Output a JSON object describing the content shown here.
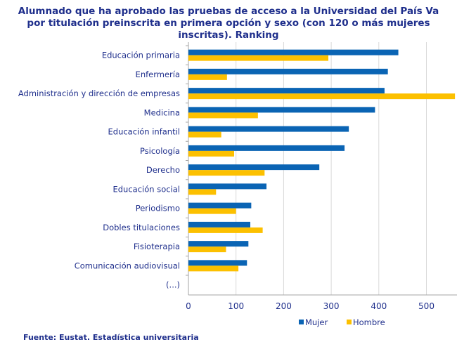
{
  "title_lines": [
    "Alumnado que ha aprobado las pruebas de acceso a la Universidad del País Va",
    "por titulación preinscrita en primera opción  y sexo (con 120 o más mujeres",
    "inscritas). Ranking"
  ],
  "source": "Fuente: Eustat. Estadística universitaria",
  "chart_data": {
    "type": "bar",
    "orientation": "horizontal",
    "categories": [
      "Educación primaria",
      "Enfermería",
      "Administración y dirección de empresas",
      "Medicina",
      "Educación infantil",
      "Psicología",
      "Derecho",
      "Educación social",
      "Periodismo",
      "Dobles titulaciones",
      "Fisioterapia",
      "Comunicación audiovisual",
      "(...)"
    ],
    "series": [
      {
        "name": "Mujer",
        "color": "#0a64b4",
        "values": [
          441,
          419,
          412,
          392,
          337,
          328,
          275,
          164,
          132,
          130,
          126,
          123,
          null
        ]
      },
      {
        "name": "Hombre",
        "color": "#fcc000",
        "values": [
          294,
          81,
          560,
          146,
          69,
          96,
          160,
          58,
          100,
          156,
          79,
          105,
          null
        ]
      }
    ],
    "xticks": [
      "0",
      "100",
      "200",
      "300",
      "400",
      "500"
    ],
    "xlim": [
      0,
      560
    ],
    "grid": true,
    "legend": "bottom"
  }
}
